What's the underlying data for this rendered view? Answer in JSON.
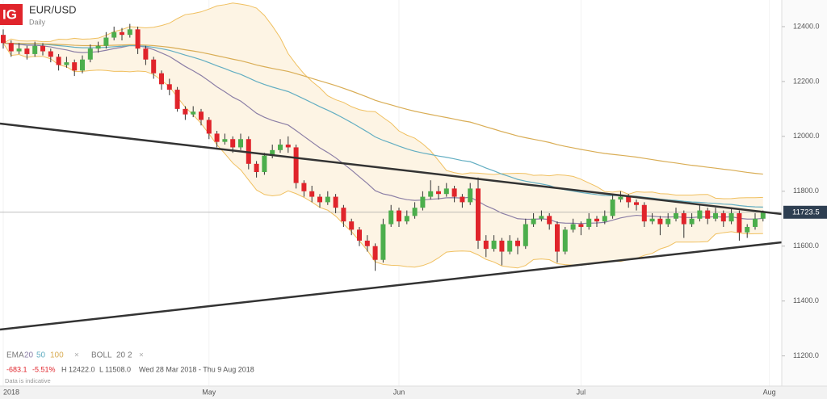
{
  "chart_data": {
    "type": "candlestick",
    "symbol": "EUR/USD",
    "timeframe": "Daily",
    "logo": "IG",
    "up_color": "#4cae4c",
    "down_color": "#e0242b",
    "candles": [
      [
        12370,
        12390,
        12320,
        12340
      ],
      [
        12340,
        12350,
        12290,
        12310
      ],
      [
        12310,
        12340,
        12300,
        12320
      ],
      [
        12320,
        12330,
        12280,
        12300
      ],
      [
        12300,
        12345,
        12290,
        12330
      ],
      [
        12330,
        12340,
        12295,
        12310
      ],
      [
        12310,
        12320,
        12270,
        12290
      ],
      [
        12290,
        12300,
        12240,
        12260
      ],
      [
        12260,
        12290,
        12250,
        12270
      ],
      [
        12270,
        12280,
        12220,
        12240
      ],
      [
        12240,
        12295,
        12230,
        12280
      ],
      [
        12280,
        12335,
        12270,
        12320
      ],
      [
        12320,
        12345,
        12305,
        12330
      ],
      [
        12330,
        12380,
        12320,
        12360
      ],
      [
        12360,
        12400,
        12350,
        12380
      ],
      [
        12380,
        12395,
        12350,
        12370
      ],
      [
        12370,
        12410,
        12360,
        12390
      ],
      [
        12390,
        12400,
        12300,
        12320
      ],
      [
        12320,
        12330,
        12260,
        12280
      ],
      [
        12280,
        12290,
        12210,
        12230
      ],
      [
        12230,
        12240,
        12170,
        12190
      ],
      [
        12190,
        12210,
        12150,
        12170
      ],
      [
        12170,
        12180,
        12090,
        12100
      ],
      [
        12100,
        12110,
        12060,
        12080
      ],
      [
        12080,
        12110,
        12070,
        12090
      ],
      [
        12090,
        12100,
        12040,
        12060
      ],
      [
        12060,
        12070,
        11990,
        12010
      ],
      [
        12010,
        12020,
        11960,
        11980
      ],
      [
        11980,
        12010,
        11970,
        11990
      ],
      [
        11990,
        12000,
        11940,
        11960
      ],
      [
        11960,
        12010,
        11950,
        11990
      ],
      [
        11990,
        12000,
        11880,
        11900
      ],
      [
        11900,
        11910,
        11850,
        11870
      ],
      [
        11870,
        11940,
        11860,
        11930
      ],
      [
        11930,
        11970,
        11920,
        11950
      ],
      [
        11950,
        11990,
        11940,
        11970
      ],
      [
        11970,
        12000,
        11940,
        11960
      ],
      [
        11960,
        11970,
        11810,
        11830
      ],
      [
        11830,
        11840,
        11780,
        11800
      ],
      [
        11800,
        11820,
        11760,
        11780
      ],
      [
        11780,
        11790,
        11740,
        11760
      ],
      [
        11760,
        11800,
        11750,
        11780
      ],
      [
        11780,
        11790,
        11720,
        11740
      ],
      [
        11740,
        11750,
        11670,
        11690
      ],
      [
        11690,
        11700,
        11640,
        11660
      ],
      [
        11660,
        11670,
        11600,
        11620
      ],
      [
        11620,
        11640,
        11580,
        11600
      ],
      [
        11600,
        11610,
        11510,
        11550
      ],
      [
        11550,
        11700,
        11540,
        11680
      ],
      [
        11680,
        11750,
        11670,
        11730
      ],
      [
        11730,
        11740,
        11670,
        11690
      ],
      [
        11690,
        11730,
        11680,
        11710
      ],
      [
        11710,
        11760,
        11700,
        11740
      ],
      [
        11740,
        11800,
        11730,
        11780
      ],
      [
        11780,
        11840,
        11770,
        11800
      ],
      [
        11800,
        11820,
        11770,
        11790
      ],
      [
        11790,
        11830,
        11780,
        11810
      ],
      [
        11810,
        11820,
        11760,
        11780
      ],
      [
        11780,
        11790,
        11740,
        11760
      ],
      [
        11760,
        11830,
        11750,
        11810
      ],
      [
        11810,
        11850,
        11590,
        11620
      ],
      [
        11620,
        11640,
        11560,
        11590
      ],
      [
        11590,
        11640,
        11580,
        11620
      ],
      [
        11620,
        11630,
        11530,
        11580
      ],
      [
        11580,
        11640,
        11570,
        11620
      ],
      [
        11620,
        11630,
        11570,
        11600
      ],
      [
        11600,
        11700,
        11590,
        11680
      ],
      [
        11680,
        11720,
        11670,
        11700
      ],
      [
        11700,
        11730,
        11690,
        11710
      ],
      [
        11710,
        11720,
        11660,
        11680
      ],
      [
        11680,
        11690,
        11540,
        11580
      ],
      [
        11580,
        11670,
        11570,
        11660
      ],
      [
        11660,
        11700,
        11650,
        11680
      ],
      [
        11680,
        11690,
        11640,
        11670
      ],
      [
        11670,
        11720,
        11660,
        11700
      ],
      [
        11700,
        11710,
        11670,
        11690
      ],
      [
        11690,
        11730,
        11680,
        11710
      ],
      [
        11710,
        11790,
        11700,
        11770
      ],
      [
        11770,
        11800,
        11760,
        11780
      ],
      [
        11780,
        11790,
        11740,
        11760
      ],
      [
        11760,
        11770,
        11730,
        11750
      ],
      [
        11750,
        11760,
        11670,
        11690
      ],
      [
        11690,
        11720,
        11680,
        11700
      ],
      [
        11700,
        11710,
        11640,
        11680
      ],
      [
        11680,
        11720,
        11670,
        11700
      ],
      [
        11700,
        11740,
        11690,
        11720
      ],
      [
        11720,
        11730,
        11630,
        11680
      ],
      [
        11680,
        11720,
        11670,
        11700
      ],
      [
        11700,
        11750,
        11690,
        11730
      ],
      [
        11730,
        11740,
        11680,
        11700
      ],
      [
        11700,
        11740,
        11690,
        11720
      ],
      [
        11720,
        11730,
        11670,
        11690
      ],
      [
        11690,
        11740,
        11680,
        11720
      ],
      [
        11720,
        11730,
        11620,
        11650
      ],
      [
        11650,
        11680,
        11630,
        11670
      ],
      [
        11670,
        11720,
        11660,
        11700
      ],
      [
        11700,
        11730,
        11690,
        11723.5
      ]
    ],
    "ylim": [
      11090,
      12497
    ],
    "yticks": [
      {
        "value": 11200,
        "label": "11200.0"
      },
      {
        "value": 11400,
        "label": "11400.0"
      },
      {
        "value": 11600,
        "label": "11600.0"
      },
      {
        "value": 11800,
        "label": "11800.0"
      },
      {
        "value": 12000,
        "label": "12000.0"
      },
      {
        "value": 12200,
        "label": "12200.0"
      },
      {
        "value": 12400,
        "label": "12400.0"
      }
    ],
    "last_price_label": "11723.5",
    "x_labels": [
      {
        "label": "2018",
        "index": 0
      },
      {
        "label": "May",
        "index": 26
      },
      {
        "label": "Jun",
        "index": 50
      },
      {
        "label": "Jul",
        "index": 73
      },
      {
        "label": "Aug",
        "index": 96.8
      }
    ],
    "indicators": {
      "ema": {
        "label": "EMA",
        "periods": [
          20,
          50,
          100
        ],
        "colors": [
          "#8c7fa6",
          "#63aec2",
          "#d9ad55"
        ]
      },
      "boll": {
        "label": "BOLL",
        "period": 20,
        "mult": 2,
        "color": "#f0c060",
        "fill": "#fdf4e4"
      }
    },
    "stats": {
      "change": "-683.1",
      "change_pct": "-5.51%",
      "high": "H 12422.0",
      "low": "L 11508.0",
      "range": "Wed 28 Mar 2018 - Thu 9 Aug 2018"
    },
    "note": "Data is indicative"
  }
}
